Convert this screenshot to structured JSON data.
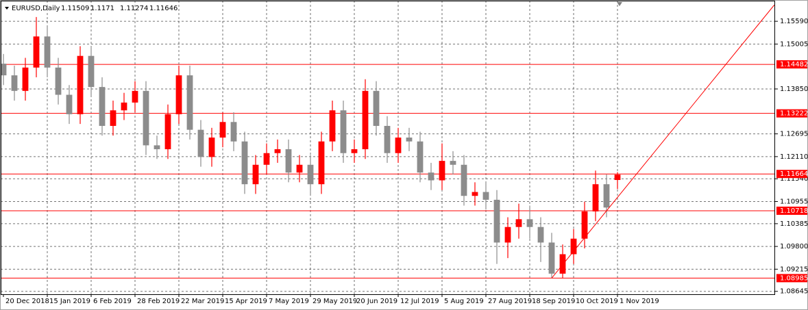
{
  "chart_data": {
    "type": "candlestick",
    "title": "EURUSD,Daily",
    "categories": [
      "20 Dec 2018",
      null,
      null,
      null,
      "15 Jan 2019",
      null,
      null,
      null,
      "6 Feb 2019",
      null,
      null,
      null,
      "28 Feb 2019",
      null,
      null,
      null,
      "22 Mar 2019",
      null,
      null,
      null,
      "15 Apr 2019",
      null,
      null,
      null,
      "7 May 2019",
      null,
      null,
      null,
      "29 May 2019",
      null,
      null,
      null,
      "20 Jun 2019",
      null,
      null,
      null,
      "12 Jul 2019",
      null,
      null,
      null,
      "5 Aug 2019",
      null,
      null,
      null,
      "27 Aug 2019",
      null,
      null,
      null,
      "18 Sep 2019",
      null,
      null,
      null,
      "10 Oct 2019",
      null,
      null,
      null,
      "1 Nov 2019"
    ],
    "open": [
      1.145,
      1.142,
      1.138,
      1.144,
      1.152,
      1.144,
      1.137,
      1.132,
      1.147,
      1.139,
      1.129,
      1.133,
      1.135,
      1.138,
      1.124,
      1.123,
      1.132,
      1.142,
      1.128,
      1.121,
      1.126,
      1.13,
      1.125,
      1.114,
      1.119,
      1.122,
      1.123,
      1.117,
      1.119,
      1.114,
      1.125,
      1.133,
      1.122,
      1.123,
      1.138,
      1.129,
      1.122,
      1.126,
      1.125,
      1.117,
      1.115,
      1.12,
      1.119,
      1.111,
      1.112,
      1.11,
      1.099,
      1.103,
      1.105,
      1.103,
      1.099,
      1.091,
      1.096,
      1.1,
      1.107,
      1.114,
      1.11509
    ],
    "high": [
      1.1475,
      1.1445,
      1.1465,
      1.157,
      1.1545,
      1.1465,
      1.1395,
      1.1495,
      1.1495,
      1.1415,
      1.1355,
      1.1375,
      1.1405,
      1.1405,
      1.1265,
      1.1345,
      1.1445,
      1.1445,
      1.1305,
      1.1285,
      1.1325,
      1.1325,
      1.1275,
      1.1215,
      1.1245,
      1.1255,
      1.1255,
      1.1215,
      1.1215,
      1.1275,
      1.1355,
      1.1355,
      1.1255,
      1.141,
      1.1405,
      1.1315,
      1.1285,
      1.1285,
      1.1275,
      1.1195,
      1.1245,
      1.1225,
      1.1215,
      1.1145,
      1.1145,
      1.1125,
      1.1055,
      1.109,
      1.1085,
      1.1055,
      1.1015,
      1.0985,
      1.1025,
      1.1095,
      1.1175,
      1.1165,
      1.1171
    ],
    "low": [
      1.1395,
      1.1355,
      1.1355,
      1.1415,
      1.1415,
      1.1345,
      1.1295,
      1.1295,
      1.1365,
      1.1265,
      1.1265,
      1.1305,
      1.1325,
      1.1215,
      1.1205,
      1.1205,
      1.1295,
      1.1255,
      1.1185,
      1.1185,
      1.1235,
      1.1225,
      1.1115,
      1.1115,
      1.1165,
      1.1195,
      1.1145,
      1.1145,
      1.1115,
      1.1115,
      1.1225,
      1.1195,
      1.1195,
      1.1205,
      1.1265,
      1.1195,
      1.1195,
      1.1225,
      1.1145,
      1.1125,
      1.1125,
      1.1165,
      1.1085,
      1.1085,
      1.1075,
      1.0935,
      1.095,
      1.1,
      1.1,
      1.094,
      1.0898,
      1.0898,
      1.0935,
      1.0975,
      1.1045,
      1.1055,
      1.11274
    ],
    "close": [
      1.142,
      1.138,
      1.144,
      1.152,
      1.144,
      1.137,
      1.132,
      1.147,
      1.139,
      1.129,
      1.133,
      1.135,
      1.138,
      1.124,
      1.123,
      1.132,
      1.142,
      1.128,
      1.121,
      1.126,
      1.13,
      1.125,
      1.114,
      1.119,
      1.122,
      1.123,
      1.117,
      1.119,
      1.114,
      1.125,
      1.133,
      1.122,
      1.123,
      1.138,
      1.129,
      1.122,
      1.126,
      1.125,
      1.117,
      1.115,
      1.12,
      1.119,
      1.111,
      1.112,
      1.11,
      1.099,
      1.103,
      1.105,
      1.103,
      1.099,
      1.091,
      1.096,
      1.1,
      1.107,
      1.114,
      1.108,
      1.11646
    ],
    "up_color": "#ff0000",
    "down_color": "#8c8c8c",
    "xlim": [
      -0.25,
      70.375
    ],
    "ylim": [
      1.0857,
      1.1612
    ],
    "yticks": [
      {
        "value": 1.1559,
        "label": "1.15590"
      },
      {
        "value": 1.15005,
        "label": "1.15005"
      },
      {
        "value": 1.1385,
        "label": "1.13850"
      },
      {
        "value": 1.12695,
        "label": "1.12695"
      },
      {
        "value": 1.1211,
        "label": "1.12110"
      },
      {
        "value": 1.1154,
        "label": "1.11540"
      },
      {
        "value": 1.10955,
        "label": "1.10955"
      },
      {
        "value": 1.10385,
        "label": "1.10385"
      },
      {
        "value": 1.098,
        "label": "1.09800"
      },
      {
        "value": 1.09215,
        "label": "1.09215"
      },
      {
        "value": 1.08645,
        "label": "1.08645"
      }
    ],
    "grid": true,
    "levels": [
      1.14482,
      1.13222,
      1.11664,
      1.10718,
      1.08985
    ],
    "level_color": "#ff0000",
    "trendline": {
      "x": [
        50,
        70.3
      ],
      "y": [
        1.08985,
        1.1601
      ]
    }
  }
}
